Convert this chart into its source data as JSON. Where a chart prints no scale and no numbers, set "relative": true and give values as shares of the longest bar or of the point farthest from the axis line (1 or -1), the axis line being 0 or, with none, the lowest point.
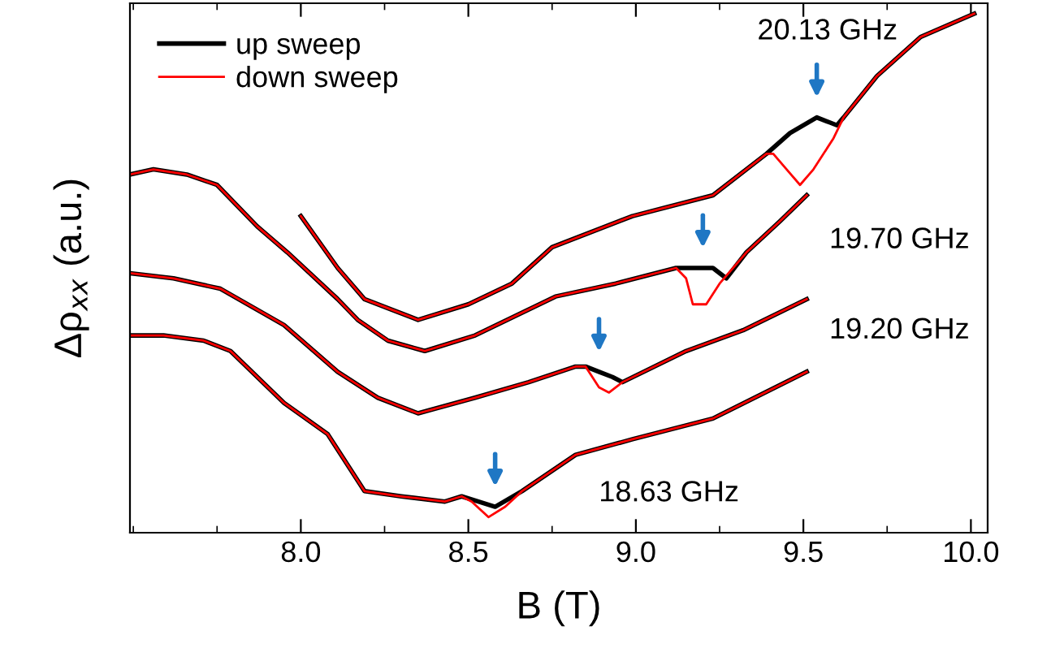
{
  "chart_data": {
    "type": "line",
    "relative": true,
    "xlabel": "B (T)",
    "ylabel": "Δρ$_{xx}$ (a.u.)",
    "xlim": [
      7.49,
      10.05
    ],
    "xticks": [
      {
        "value": 8,
        "label": "8.0"
      },
      {
        "value": 8.5,
        "label": "8.5"
      },
      {
        "value": 9,
        "label": "9.0"
      },
      {
        "value": 9.5,
        "label": "9.5"
      },
      {
        "value": 10,
        "label": "10.0"
      }
    ],
    "grid": false,
    "legend": "top left",
    "marker": "none",
    "line_style": "solid",
    "series": [
      {
        "name": "up sweep",
        "color": "#000000",
        "x": [
          8.0,
          8.11,
          8.19,
          8.27,
          8.35,
          8.5,
          8.63,
          8.75,
          8.99,
          9.23,
          9.39,
          9.46,
          9.54,
          9.58,
          9.6,
          9.62,
          9.72,
          9.85,
          10.01
        ],
        "values": [
          0.61,
          0.51,
          0.45,
          0.43,
          0.41,
          0.44,
          0.48,
          0.55,
          0.61,
          0.65,
          0.73,
          0.77,
          0.8,
          0.79,
          0.785,
          0.8,
          0.88,
          0.955,
          1.0
        ]
      },
      {
        "color": "#000000",
        "x": [
          7.49,
          7.56,
          7.66,
          7.75,
          7.87,
          7.96,
          8.11,
          8.17,
          8.26,
          8.37,
          8.52,
          8.76,
          8.94,
          9.12,
          9.2,
          9.23,
          9.27,
          9.33,
          9.43,
          9.51
        ],
        "values": [
          0.69,
          0.7,
          0.69,
          0.67,
          0.59,
          0.54,
          0.45,
          0.41,
          0.37,
          0.35,
          0.38,
          0.455,
          0.48,
          0.51,
          0.51,
          0.51,
          0.49,
          0.54,
          0.6,
          0.65
        ]
      },
      {
        "color": "#000000",
        "x": [
          7.49,
          7.62,
          7.76,
          7.95,
          8.11,
          8.23,
          8.35,
          8.52,
          8.68,
          8.82,
          8.85,
          8.89,
          8.93,
          8.96,
          9.15,
          9.32,
          9.51
        ],
        "values": [
          0.5,
          0.49,
          0.47,
          0.4,
          0.31,
          0.26,
          0.23,
          0.26,
          0.29,
          0.32,
          0.32,
          0.31,
          0.3,
          0.29,
          0.35,
          0.39,
          0.45
        ]
      },
      {
        "color": "#000000",
        "x": [
          7.49,
          7.59,
          7.71,
          7.79,
          7.95,
          8.08,
          8.19,
          8.3,
          8.43,
          8.48,
          8.53,
          8.58,
          8.66,
          8.82,
          8.99,
          9.23,
          9.51
        ],
        "values": [
          0.38,
          0.38,
          0.37,
          0.35,
          0.25,
          0.19,
          0.08,
          0.07,
          0.06,
          0.07,
          0.06,
          0.05,
          0.08,
          0.15,
          0.18,
          0.22,
          0.31
        ]
      },
      {
        "name": "down sweep",
        "color": "#ff0000",
        "x": [
          8.0,
          8.11,
          8.19,
          8.27,
          8.35,
          8.5,
          8.63,
          8.75,
          8.99,
          9.23,
          9.39,
          9.41,
          9.45,
          9.49,
          9.53,
          9.59,
          9.62,
          9.72,
          9.85,
          10.01
        ],
        "values": [
          0.61,
          0.51,
          0.45,
          0.43,
          0.41,
          0.44,
          0.48,
          0.55,
          0.61,
          0.65,
          0.73,
          0.73,
          0.7,
          0.67,
          0.7,
          0.76,
          0.8,
          0.88,
          0.955,
          1.0
        ]
      },
      {
        "color": "#ff0000",
        "x": [
          7.49,
          7.56,
          7.66,
          7.75,
          7.87,
          7.96,
          8.11,
          8.17,
          8.26,
          8.37,
          8.52,
          8.76,
          8.94,
          9.12,
          9.15,
          9.17,
          9.21,
          9.25,
          9.33,
          9.43,
          9.51
        ],
        "values": [
          0.69,
          0.7,
          0.69,
          0.67,
          0.59,
          0.54,
          0.45,
          0.41,
          0.37,
          0.35,
          0.38,
          0.455,
          0.48,
          0.51,
          0.49,
          0.44,
          0.44,
          0.48,
          0.54,
          0.6,
          0.65
        ]
      },
      {
        "color": "#ff0000",
        "x": [
          7.49,
          7.62,
          7.76,
          7.95,
          8.11,
          8.23,
          8.35,
          8.52,
          8.68,
          8.82,
          8.85,
          8.87,
          8.89,
          8.92,
          8.96,
          9.15,
          9.32,
          9.51
        ],
        "values": [
          0.5,
          0.49,
          0.47,
          0.4,
          0.31,
          0.26,
          0.23,
          0.26,
          0.29,
          0.32,
          0.32,
          0.3,
          0.28,
          0.27,
          0.29,
          0.35,
          0.39,
          0.45
        ]
      },
      {
        "color": "#ff0000",
        "x": [
          7.49,
          7.59,
          7.71,
          7.79,
          7.95,
          8.08,
          8.19,
          8.3,
          8.43,
          8.48,
          8.51,
          8.56,
          8.61,
          8.66,
          8.82,
          8.99,
          9.23,
          9.51
        ],
        "values": [
          0.38,
          0.38,
          0.37,
          0.35,
          0.25,
          0.19,
          0.08,
          0.07,
          0.06,
          0.07,
          0.06,
          0.03,
          0.05,
          0.08,
          0.15,
          0.18,
          0.22,
          0.31
        ]
      }
    ],
    "annotations": [
      "20.13 GHz",
      "19.70 GHz",
      "19.20 GHz",
      "18.63 GHz"
    ]
  }
}
